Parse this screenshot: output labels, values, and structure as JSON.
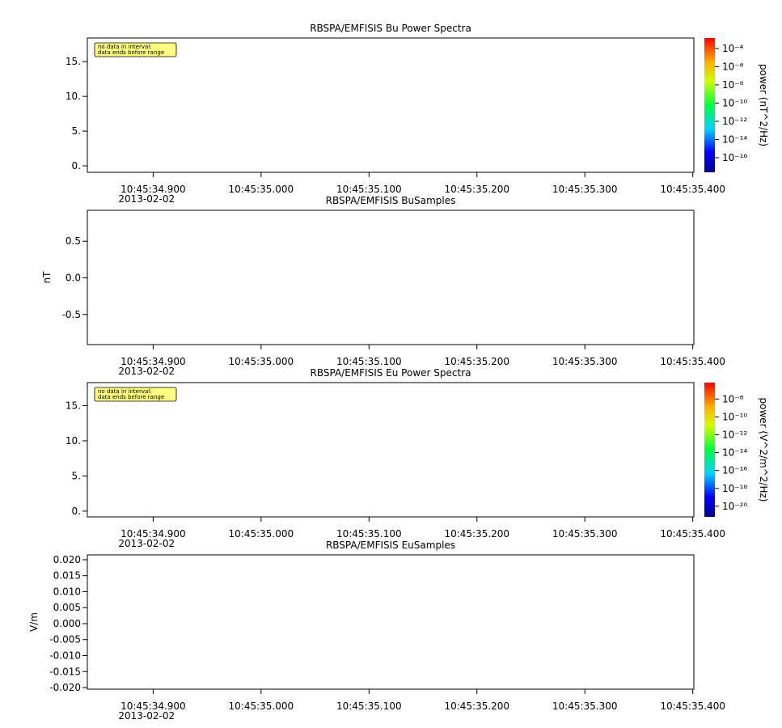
{
  "chart_data": [
    {
      "type": "spectrogram",
      "title": "RBSPA/EMFISIS  Bu Power Spectra",
      "date": "2013-02-02",
      "xlim": [
        "10:45:34.839",
        "10:45:35.401"
      ],
      "xticks": [
        "10:45:34.900",
        "10:45:35.000",
        "10:45:35.100",
        "10:45:35.200",
        "10:45:35.300",
        "10:45:35.400"
      ],
      "ylim": [
        -0.93,
        18.4
      ],
      "yticks": [
        {
          "value": 0,
          "label": "0."
        },
        {
          "value": 5,
          "label": "5."
        },
        {
          "value": 10,
          "label": "10."
        },
        {
          "value": 15,
          "label": "15."
        }
      ],
      "annotation": [
        "no data in interval:",
        "data ends before range"
      ],
      "colorbar": {
        "label": "power (nT^2/Hz)",
        "log": true,
        "lim": [
          2.5e-18,
          0.0014
        ],
        "ticks": [
          {
            "value": 0.0001,
            "label": "10⁻⁴"
          },
          {
            "value": 1e-06,
            "label": "10⁻⁶"
          },
          {
            "value": 1e-08,
            "label": "10⁻⁸"
          },
          {
            "value": 1e-10,
            "label": "10⁻¹⁰"
          },
          {
            "value": 1e-12,
            "label": "10⁻¹²"
          },
          {
            "value": 1e-14,
            "label": "10⁻¹⁴"
          },
          {
            "value": 1e-16,
            "label": "10⁻¹⁶"
          }
        ]
      }
    },
    {
      "type": "line",
      "title": "RBSPA/EMFISIS  BuSamples",
      "ylabel": "nT",
      "date": "2013-02-02",
      "xlim": [
        "10:45:34.839",
        "10:45:35.401"
      ],
      "xticks": [
        "10:45:34.900",
        "10:45:35.000",
        "10:45:35.100",
        "10:45:35.200",
        "10:45:35.300",
        "10:45:35.400"
      ],
      "ylim": [
        -0.911,
        0.922
      ],
      "yticks": [
        -0.5,
        {
          "value": 0,
          "label": "0.0"
        },
        0.5
      ]
    },
    {
      "type": "spectrogram",
      "title": "RBSPA/EMFISIS  Eu Power Spectra",
      "date": "2013-02-02",
      "xlim": [
        "10:45:34.839",
        "10:45:35.401"
      ],
      "xticks": [
        "10:45:34.900",
        "10:45:35.000",
        "10:45:35.100",
        "10:45:35.200",
        "10:45:35.300",
        "10:45:35.400"
      ],
      "ylim": [
        -0.82,
        18.28
      ],
      "yticks": [
        {
          "value": 0,
          "label": "0."
        },
        {
          "value": 5,
          "label": "5."
        },
        {
          "value": 10,
          "label": "10."
        },
        {
          "value": 15,
          "label": "15."
        }
      ],
      "annotation": [
        "no data in interval:",
        "data ends before range"
      ],
      "colorbar": {
        "label": "power (V^2/m^2/Hz)",
        "log": true,
        "lim": [
          6.5e-22,
          6.8e-07
        ],
        "ticks": [
          {
            "value": 1e-08,
            "label": "10⁻⁸"
          },
          {
            "value": 1e-10,
            "label": "10⁻¹⁰"
          },
          {
            "value": 1e-12,
            "label": "10⁻¹²"
          },
          {
            "value": 1e-14,
            "label": "10⁻¹⁴"
          },
          {
            "value": 1e-16,
            "label": "10⁻¹⁶"
          },
          {
            "value": 1e-18,
            "label": "10⁻¹⁸"
          },
          {
            "value": 1e-20,
            "label": "10⁻²⁰"
          }
        ]
      }
    },
    {
      "type": "line",
      "title": "RBSPA/EMFISIS  EuSamples",
      "ylabel": "V/m",
      "date": "2013-02-02",
      "xlim": [
        "10:45:34.839",
        "10:45:35.401"
      ],
      "xticks": [
        "10:45:34.900",
        "10:45:35.000",
        "10:45:35.100",
        "10:45:35.200",
        "10:45:35.300",
        "10:45:35.400"
      ],
      "ylim": [
        -0.0205,
        0.0215
      ],
      "yticks": [
        {
          "value": -0.02,
          "label": "-0.020"
        },
        {
          "value": -0.015,
          "label": "-0.015"
        },
        {
          "value": -0.01,
          "label": "-0.010"
        },
        {
          "value": -0.005,
          "label": "-0.005"
        },
        {
          "value": 0,
          "label": "0.000"
        },
        {
          "value": 0.005,
          "label": "0.005"
        },
        {
          "value": 0.01,
          "label": "0.010"
        },
        {
          "value": 0.015,
          "label": "0.015"
        },
        {
          "value": 0.02,
          "label": "0.020"
        }
      ]
    }
  ]
}
